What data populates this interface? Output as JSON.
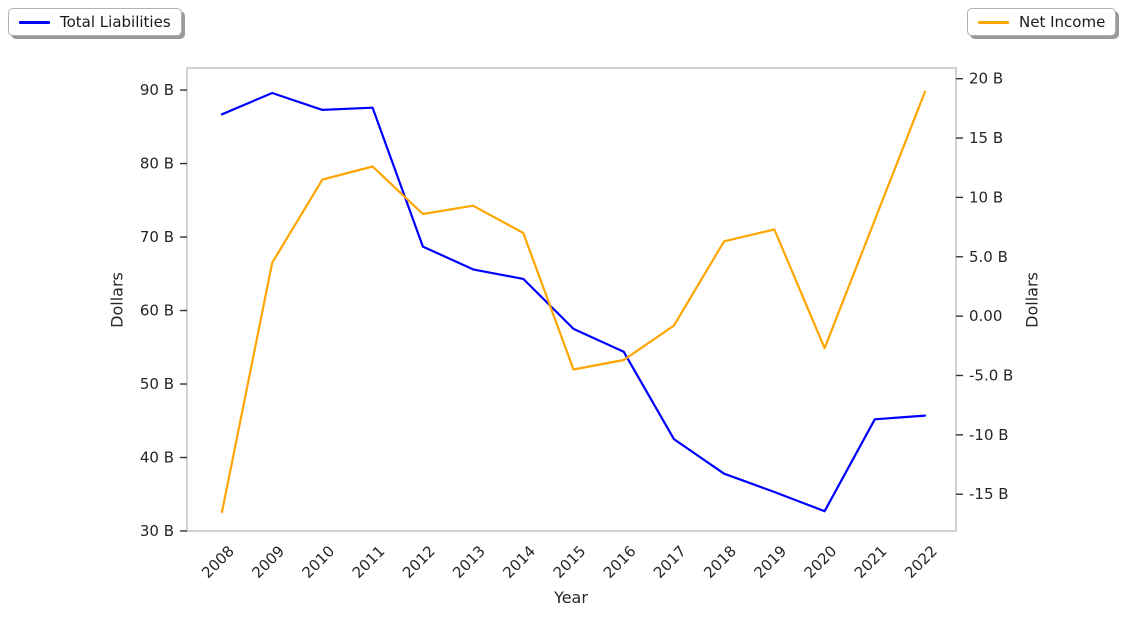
{
  "figure": {
    "background": "#ffffff",
    "border_color": "#d2d2d2",
    "text_color": "#262626",
    "legend_left_label": "Total Liabilities",
    "legend_right_label": "Net Income"
  },
  "chart_data": {
    "type": "line",
    "title": "",
    "xlabel": "Year",
    "ylabel_left": "Dollars",
    "ylabel_right": "Dollars",
    "x": [
      "2008",
      "2009",
      "2010",
      "2011",
      "2012",
      "2013",
      "2014",
      "2015",
      "2016",
      "2017",
      "2018",
      "2019",
      "2020",
      "2021",
      "2022"
    ],
    "series": [
      {
        "name": "Total Liabilities",
        "axis": "left",
        "color": "#0000ff",
        "unit": "billion dollars",
        "values": [
          86.7,
          89.6,
          87.3,
          87.6,
          68.7,
          65.6,
          64.3,
          57.5,
          54.4,
          42.5,
          37.8,
          35.3,
          32.7,
          45.2,
          45.7
        ]
      },
      {
        "name": "Net Income",
        "axis": "right",
        "color": "#ffa500",
        "unit": "billion dollars",
        "values": [
          -16.5,
          4.5,
          11.5,
          12.6,
          8.6,
          9.3,
          7.0,
          -4.5,
          -3.7,
          -0.8,
          6.3,
          7.3,
          -2.7,
          8.1,
          18.9
        ]
      }
    ],
    "axes": {
      "grid": false,
      "left": {
        "ylim": [
          30,
          93
        ],
        "ticks": [
          {
            "v": 30,
            "label": "30 B"
          },
          {
            "v": 40,
            "label": "40 B"
          },
          {
            "v": 50,
            "label": "50 B"
          },
          {
            "v": 60,
            "label": "60 B"
          },
          {
            "v": 70,
            "label": "70 B"
          },
          {
            "v": 80,
            "label": "80 B"
          },
          {
            "v": 90,
            "label": "90 B"
          }
        ]
      },
      "right": {
        "ylim": [
          -18.1,
          20.9
        ],
        "ticks": [
          {
            "v": -15,
            "label": "-15 B"
          },
          {
            "v": -10,
            "label": "-10 B"
          },
          {
            "v": -5,
            "label": "-5.0 B"
          },
          {
            "v": 0,
            "label": "0.00"
          },
          {
            "v": 5,
            "label": "5.0 B"
          },
          {
            "v": 10,
            "label": "10 B"
          },
          {
            "v": 15,
            "label": "15 B"
          },
          {
            "v": 20,
            "label": "20 B"
          }
        ]
      }
    },
    "legend_positions": [
      "outside upper left",
      "outside upper right"
    ]
  }
}
